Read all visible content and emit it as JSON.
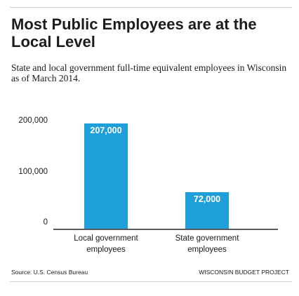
{
  "chart_data": {
    "type": "bar",
    "title": "Most Public Employees are at the Local Level",
    "subtitle": "State and local government full-time equivalent employees in Wisconsin as of March 2014.",
    "categories": [
      "Local government employees",
      "State government employees"
    ],
    "values": [
      207000,
      72000
    ],
    "data_labels": [
      "207,000",
      "72,000"
    ],
    "yticks": [
      {
        "value": 0,
        "label": "0"
      },
      {
        "value": 100000,
        "label": "100,000"
      },
      {
        "value": 200000,
        "label": "200,000"
      }
    ],
    "ylim": [
      0,
      207000
    ],
    "xlabel": "",
    "ylabel": "",
    "bar_color": "#1e9fd9",
    "grid": false,
    "legend": "none"
  },
  "footer": {
    "source": "Source: U.S. Census Bureau",
    "credit": "WISCONSIN BUDGET PROJECT"
  }
}
